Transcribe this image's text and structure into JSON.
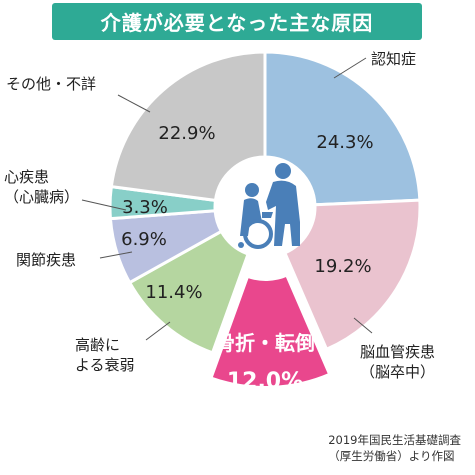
{
  "chart_data": {
    "type": "pie",
    "variant": "donut-exploded-highlight",
    "title": "介護が必要となった主な原因",
    "start": "12 o'clock, clockwise",
    "slices": [
      {
        "label": "認知症",
        "value_label": "24.3%",
        "value": 24.3,
        "color": "#9dc1e0"
      },
      {
        "label": "脳血管疾患（脳卒中）",
        "label_lines": [
          "脳血管疾患",
          "（脳卒中）"
        ],
        "value_label": "19.2%",
        "value": 19.2,
        "color": "#eac3cf"
      },
      {
        "label": "骨折・転倒",
        "value_label": "12.0%",
        "value": 12.0,
        "color": "#e9478d",
        "highlight": true
      },
      {
        "label": "高齢による衰弱",
        "label_lines": [
          "高齢に",
          "よる衰弱"
        ],
        "value_label": "11.4%",
        "value": 11.4,
        "color": "#b5d6a0"
      },
      {
        "label": "関節疾患",
        "label_lines": [
          "関節疾患"
        ],
        "value_label": "6.9%",
        "value": 6.9,
        "color": "#b9c0e0"
      },
      {
        "label": "心疾患（心臓病）",
        "label_lines": [
          "心疾患",
          "（心臓病）"
        ],
        "value_label": "3.3%",
        "value": 3.3,
        "color": "#88cfc8"
      },
      {
        "label": "その他・不詳",
        "label_lines": [
          "その他・不詳"
        ],
        "value_label": "22.9%",
        "value": 22.9,
        "color": "#c8c8c8"
      }
    ],
    "center_icon": "wheelchair-caregiver-icon",
    "source_lines": [
      "2019年国民生活基礎調査",
      "（厚生労働省）より作図"
    ]
  }
}
